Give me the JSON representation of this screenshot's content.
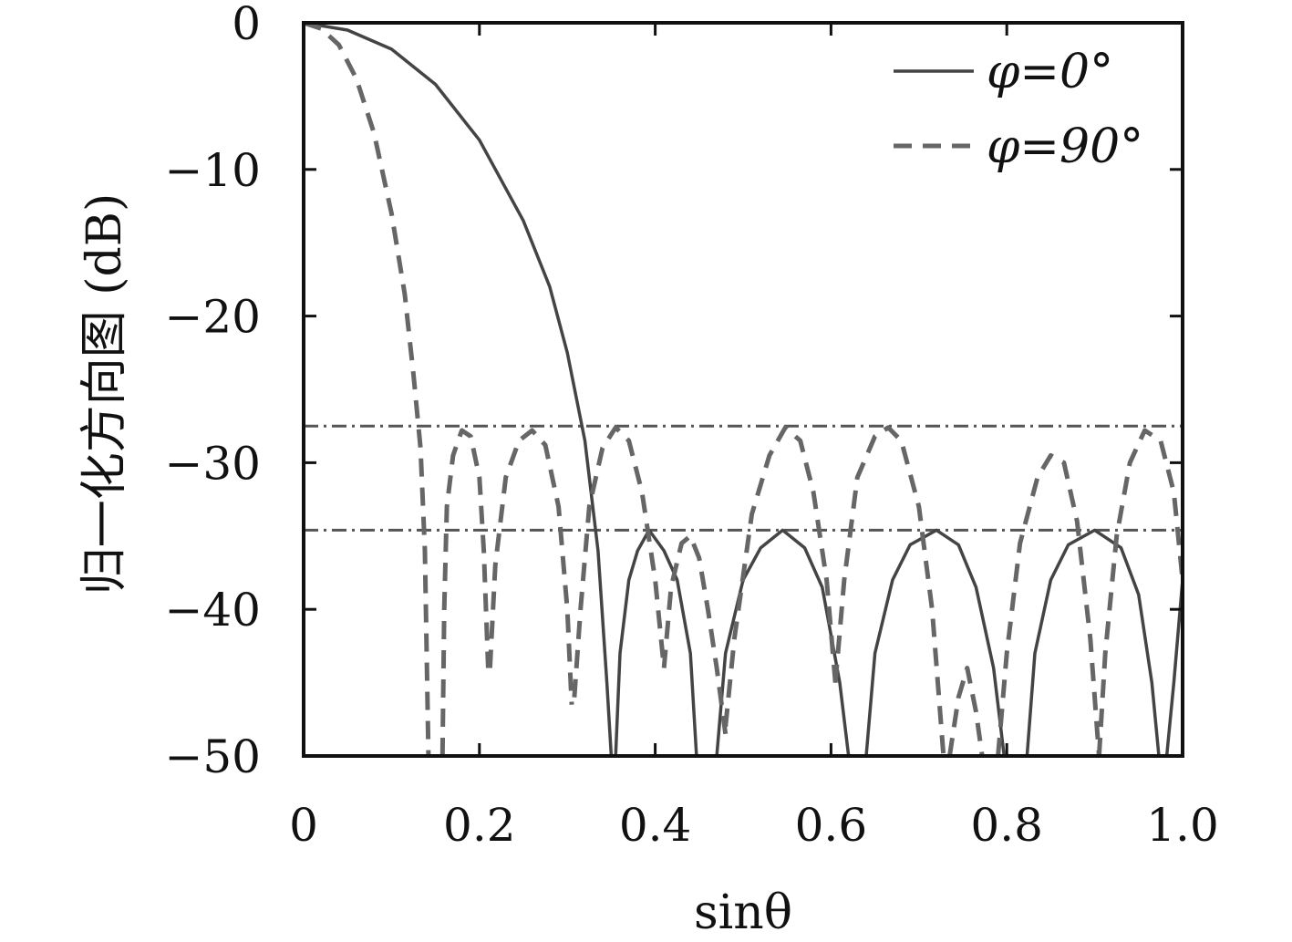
{
  "chart_data": {
    "type": "line",
    "xlabel": "sinθ",
    "ylabel": "归一化方向图 (dB)",
    "xlim": [
      0,
      1.0
    ],
    "ylim": [
      -50,
      0
    ],
    "xticks": [
      "0",
      "0.2",
      "0.4",
      "0.6",
      "0.8",
      "1.0"
    ],
    "xtick_values": [
      0,
      0.2,
      0.4,
      0.6,
      0.8,
      1.0
    ],
    "yticks": [
      "0",
      "−10",
      "−20",
      "−30",
      "−40",
      "−50"
    ],
    "ytick_values": [
      0,
      -10,
      -20,
      -30,
      -40,
      -50
    ],
    "grid": false,
    "legend_position": "top-right",
    "colors": {
      "phi0": "#444444",
      "phi90": "#666666",
      "ref": "#555555"
    },
    "series": [
      {
        "name": "φ=0°",
        "style": "solid",
        "points": [
          [
            0,
            0
          ],
          [
            0.05,
            -0.5
          ],
          [
            0.1,
            -1.8
          ],
          [
            0.15,
            -4.2
          ],
          [
            0.2,
            -8.0
          ],
          [
            0.25,
            -13.5
          ],
          [
            0.28,
            -18.0
          ],
          [
            0.3,
            -22.5
          ],
          [
            0.32,
            -28.5
          ],
          [
            0.335,
            -36.0
          ],
          [
            0.345,
            -45.0
          ],
          [
            0.35,
            -50
          ],
          [
            null,
            null
          ],
          [
            0.355,
            -50
          ],
          [
            0.36,
            -43.0
          ],
          [
            0.37,
            -38.0
          ],
          [
            0.38,
            -36.0
          ],
          [
            0.393,
            -34.6
          ],
          [
            0.41,
            -36.0
          ],
          [
            0.425,
            -38.0
          ],
          [
            0.44,
            -43.0
          ],
          [
            0.447,
            -50
          ],
          [
            null,
            null
          ],
          [
            0.47,
            -50
          ],
          [
            0.48,
            -43.0
          ],
          [
            0.5,
            -38.0
          ],
          [
            0.52,
            -35.8
          ],
          [
            0.545,
            -34.6
          ],
          [
            0.57,
            -35.8
          ],
          [
            0.59,
            -38.5
          ],
          [
            0.61,
            -45.0
          ],
          [
            0.62,
            -50
          ],
          [
            null,
            null
          ],
          [
            0.64,
            -50
          ],
          [
            0.65,
            -43.0
          ],
          [
            0.67,
            -38.0
          ],
          [
            0.69,
            -35.6
          ],
          [
            0.72,
            -34.6
          ],
          [
            0.745,
            -35.6
          ],
          [
            0.765,
            -38.5
          ],
          [
            0.785,
            -44.0
          ],
          [
            0.797,
            -50
          ],
          [
            null,
            null
          ],
          [
            0.823,
            -50
          ],
          [
            0.832,
            -43.0
          ],
          [
            0.85,
            -38.0
          ],
          [
            0.87,
            -35.6
          ],
          [
            0.9,
            -34.6
          ],
          [
            0.93,
            -35.8
          ],
          [
            0.95,
            -39.0
          ],
          [
            0.965,
            -45.0
          ],
          [
            0.973,
            -50
          ],
          [
            null,
            null
          ],
          [
            0.982,
            -50
          ],
          [
            0.99,
            -45.0
          ],
          [
            1.0,
            -38.0
          ]
        ]
      },
      {
        "name": "φ=90°",
        "style": "dashed",
        "points": [
          [
            0,
            0
          ],
          [
            0.02,
            -0.4
          ],
          [
            0.04,
            -1.5
          ],
          [
            0.06,
            -3.8
          ],
          [
            0.08,
            -7.5
          ],
          [
            0.1,
            -13.0
          ],
          [
            0.115,
            -18.5
          ],
          [
            0.125,
            -24.0
          ],
          [
            0.133,
            -29.0
          ],
          [
            0.138,
            -36.0
          ],
          [
            0.142,
            -50
          ],
          [
            null,
            null
          ],
          [
            0.158,
            -50
          ],
          [
            0.16,
            -40.0
          ],
          [
            0.163,
            -33.0
          ],
          [
            0.17,
            -29.5
          ],
          [
            0.18,
            -27.8
          ],
          [
            0.19,
            -28.2
          ],
          [
            0.2,
            -31.0
          ],
          [
            0.205,
            -36.0
          ],
          [
            0.21,
            -44.0
          ],
          [
            null,
            null
          ],
          [
            0.212,
            -44.0
          ],
          [
            0.218,
            -37.0
          ],
          [
            0.23,
            -31.0
          ],
          [
            0.245,
            -28.5
          ],
          [
            0.26,
            -27.8
          ],
          [
            0.275,
            -28.8
          ],
          [
            0.29,
            -33.0
          ],
          [
            0.3,
            -40.0
          ],
          [
            0.305,
            -46.5
          ],
          [
            null,
            null
          ],
          [
            0.308,
            -46.0
          ],
          [
            0.315,
            -40.0
          ],
          [
            0.325,
            -33.0
          ],
          [
            0.34,
            -29.0
          ],
          [
            0.355,
            -27.6
          ],
          [
            0.37,
            -28.5
          ],
          [
            0.385,
            -32.0
          ],
          [
            0.4,
            -38.0
          ],
          [
            0.41,
            -44.0
          ],
          [
            null,
            null
          ],
          [
            0.41,
            -44.0
          ],
          [
            0.418,
            -38.5
          ],
          [
            0.43,
            -35.5
          ],
          [
            0.44,
            -35.0
          ],
          [
            0.45,
            -36.5
          ],
          [
            0.46,
            -40.0
          ],
          [
            0.47,
            -44.0
          ],
          [
            0.48,
            -48.5
          ],
          [
            null,
            null
          ],
          [
            0.48,
            -48.0
          ],
          [
            0.49,
            -42.0
          ],
          [
            0.51,
            -33.5
          ],
          [
            0.53,
            -29.5
          ],
          [
            0.548,
            -27.6
          ],
          [
            0.565,
            -28.5
          ],
          [
            0.58,
            -32.0
          ],
          [
            0.595,
            -38.0
          ],
          [
            0.605,
            -45.0
          ],
          [
            null,
            null
          ],
          [
            0.605,
            -45.0
          ],
          [
            0.615,
            -38.0
          ],
          [
            0.63,
            -31.0
          ],
          [
            0.65,
            -28.2
          ],
          [
            0.665,
            -27.6
          ],
          [
            0.68,
            -28.5
          ],
          [
            0.7,
            -33.0
          ],
          [
            0.715,
            -40.0
          ],
          [
            0.728,
            -50
          ],
          [
            null,
            null
          ],
          [
            0.735,
            -50
          ],
          [
            0.745,
            -46.0
          ],
          [
            0.755,
            -44.0
          ],
          [
            0.765,
            -47.0
          ],
          [
            0.772,
            -50
          ],
          [
            null,
            null
          ],
          [
            0.79,
            -50
          ],
          [
            0.8,
            -43.0
          ],
          [
            0.815,
            -35.5
          ],
          [
            0.835,
            -31.0
          ],
          [
            0.85,
            -29.5
          ],
          [
            0.865,
            -30.0
          ],
          [
            0.88,
            -34.0
          ],
          [
            0.895,
            -42.0
          ],
          [
            0.905,
            -50
          ],
          [
            null,
            null
          ],
          [
            0.905,
            -50
          ],
          [
            0.912,
            -43.0
          ],
          [
            0.925,
            -35.0
          ],
          [
            0.94,
            -30.0
          ],
          [
            0.957,
            -27.8
          ],
          [
            0.975,
            -28.5
          ],
          [
            0.99,
            -32.0
          ],
          [
            1.0,
            -38.0
          ]
        ]
      }
    ],
    "reference_lines": [
      {
        "y": -27.5,
        "style": "dashdot"
      },
      {
        "y": -34.6,
        "style": "dashdot"
      }
    ]
  }
}
